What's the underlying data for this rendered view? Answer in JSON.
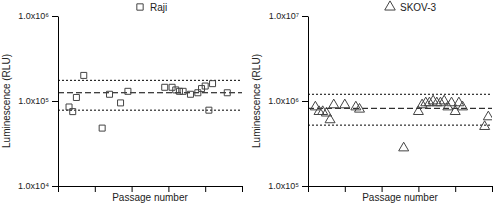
{
  "chart_data": [
    {
      "type": "scatter",
      "x_label": "Passage number",
      "y_label": "Luminescence (RLU)",
      "xlim": [
        0,
        50
      ],
      "xticks": [
        0,
        10,
        20,
        30,
        40,
        50
      ],
      "ylim": [
        10000,
        1000000
      ],
      "yticks": [
        {
          "value": 10000,
          "label": "1.0x10⁴"
        },
        {
          "value": 100000,
          "label": "1.0x10⁵"
        },
        {
          "value": 1000000,
          "label": "1.0x10⁶"
        }
      ],
      "log": "y",
      "tick_labels": "y",
      "legend": "top",
      "series": [
        {
          "name": "Raji",
          "marker": "square",
          "color": "#444444",
          "x": [
            3,
            4,
            5,
            7,
            12,
            14,
            17,
            19,
            29,
            31,
            32,
            33,
            34,
            36,
            38,
            39,
            40,
            41,
            42,
            46
          ],
          "values": [
            85000,
            75000,
            110000,
            200000,
            48000,
            120000,
            95000,
            130000,
            145000,
            145000,
            135000,
            130000,
            130000,
            120000,
            125000,
            140000,
            150000,
            78000,
            160000,
            125000
          ]
        }
      ],
      "hlines": [
        {
          "value": 125000,
          "line_style": "dashed"
        },
        {
          "value": 175000,
          "line_style": "dotted"
        },
        {
          "value": 78000,
          "line_style": "dotted"
        }
      ]
    },
    {
      "type": "scatter",
      "x_label": "Passage number",
      "y_label": "Luminescence (RLU)",
      "xlim": [
        0,
        50
      ],
      "xticks": [
        0,
        10,
        20,
        30,
        40,
        50
      ],
      "ylim": [
        100000,
        10000000
      ],
      "yticks": [
        {
          "value": 100000,
          "label": "1.0x10⁵"
        },
        {
          "value": 1000000,
          "label": "1.0x10⁶"
        },
        {
          "value": 10000000,
          "label": "1.0x10⁷"
        }
      ],
      "log": "y",
      "tick_labels": "y",
      "legend": "top",
      "series": [
        {
          "name": "SKOV-3",
          "marker": "triangle",
          "color": "#444444",
          "x": [
            2,
            3,
            4,
            5,
            6,
            7,
            10,
            13,
            14,
            26,
            30,
            31,
            32,
            33,
            34,
            35,
            36,
            37,
            38,
            39,
            40,
            41,
            42,
            48,
            49
          ],
          "values": [
            850000,
            750000,
            750000,
            720000,
            600000,
            900000,
            900000,
            850000,
            800000,
            280000,
            750000,
            900000,
            950000,
            950000,
            1000000,
            950000,
            950000,
            1000000,
            850000,
            950000,
            750000,
            950000,
            850000,
            500000,
            650000
          ]
        }
      ],
      "hlines": [
        {
          "value": 820000,
          "line_style": "dashed"
        },
        {
          "value": 1200000,
          "line_style": "dotted"
        },
        {
          "value": 520000,
          "line_style": "dotted"
        }
      ]
    }
  ]
}
